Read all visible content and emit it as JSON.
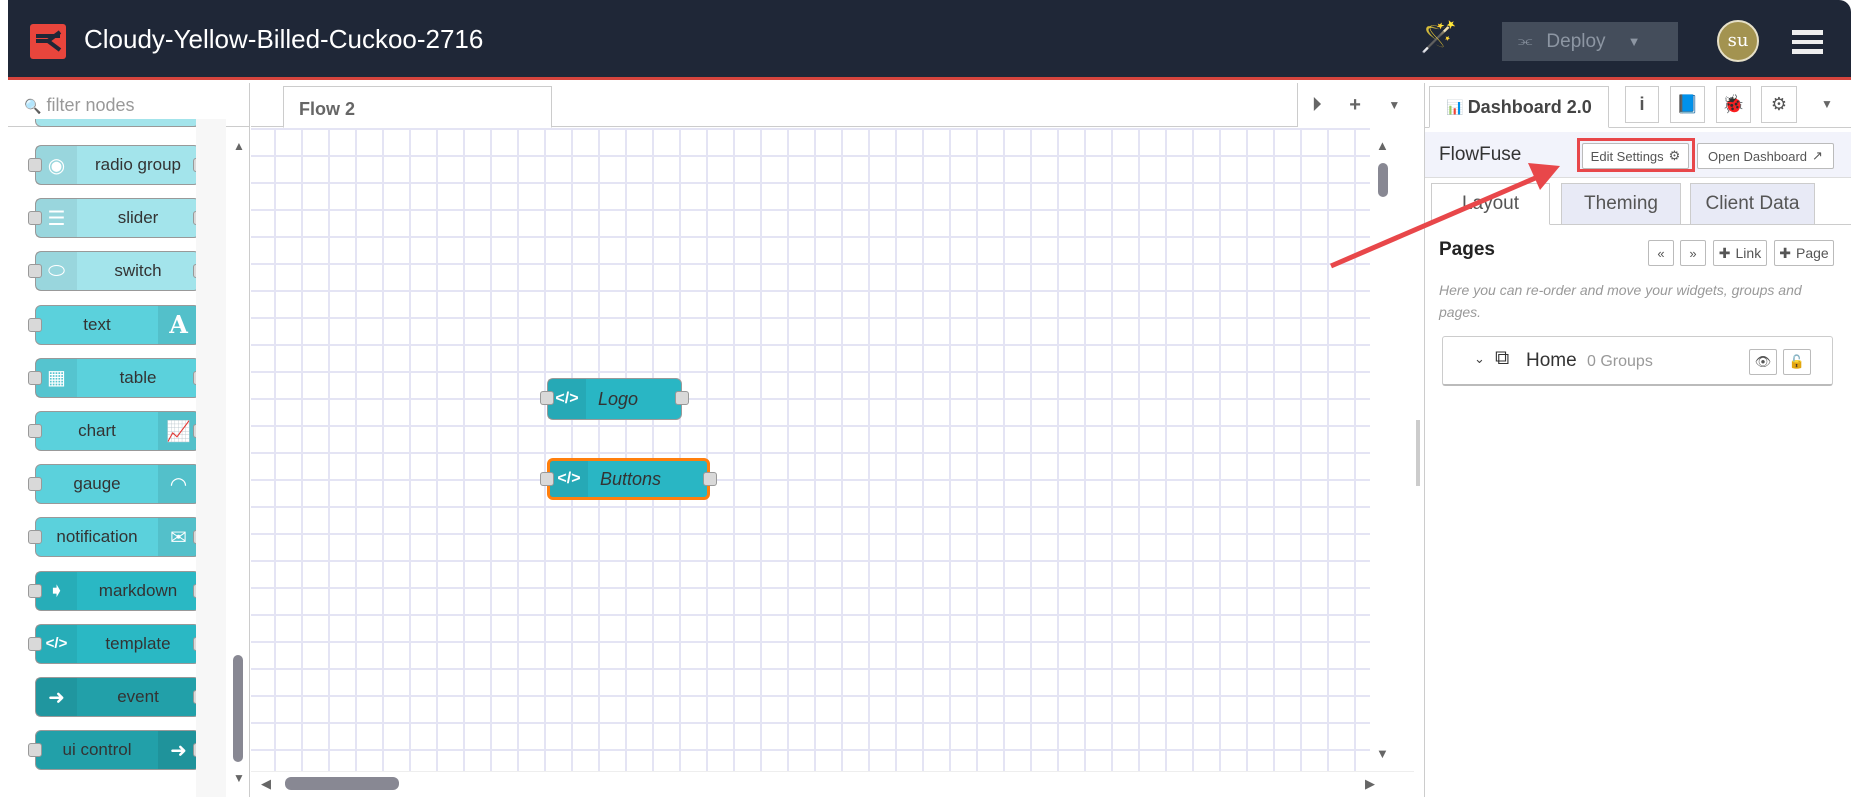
{
  "header": {
    "title": "Cloudy-Yellow-Billed-Cuckoo-2716",
    "deploy_label": "Deploy",
    "avatar_initials": "su",
    "brand_color": "#e8453c"
  },
  "palette": {
    "filter_placeholder": "filter nodes",
    "nodes": [
      {
        "label": "radio group",
        "icon": "radio-icon",
        "icon_glyph": "◉",
        "icon_side": "left",
        "color": "#a3e4eb",
        "ports": "both"
      },
      {
        "label": "slider",
        "icon": "sliders-icon",
        "icon_glyph": "☰",
        "icon_side": "left",
        "color": "#a3e4eb",
        "ports": "both"
      },
      {
        "label": "switch",
        "icon": "toggle-icon",
        "icon_glyph": "⬭",
        "icon_side": "left",
        "color": "#a3e4eb",
        "ports": "both"
      },
      {
        "label": "text",
        "icon": "font-icon",
        "icon_glyph": "A",
        "icon_side": "right",
        "color": "#5bd1dc",
        "ports": "left"
      },
      {
        "label": "table",
        "icon": "table-icon",
        "icon_glyph": "▦",
        "icon_side": "left",
        "color": "#5bd1dc",
        "ports": "both"
      },
      {
        "label": "chart",
        "icon": "line-chart-icon",
        "icon_glyph": "📈",
        "icon_side": "right",
        "color": "#5bd1dc",
        "ports": "both"
      },
      {
        "label": "gauge",
        "icon": "gauge-icon",
        "icon_glyph": "◠",
        "icon_side": "right",
        "color": "#5bd1dc",
        "ports": "left"
      },
      {
        "label": "notification",
        "icon": "envelope-icon",
        "icon_glyph": "✉",
        "icon_side": "right",
        "color": "#5bd1dc",
        "ports": "both"
      },
      {
        "label": "markdown",
        "icon": "markdown-arrow-icon",
        "icon_glyph": "➧",
        "icon_side": "left",
        "color": "#2ab8c4",
        "ports": "both"
      },
      {
        "label": "template",
        "icon": "code-icon",
        "icon_glyph": "</>",
        "icon_side": "left",
        "color": "#2ab8c4",
        "ports": "both"
      },
      {
        "label": "event",
        "icon": "arrow-circle-icon",
        "icon_glyph": "➜",
        "icon_side": "left",
        "color": "#22a0a9",
        "ports": "right"
      },
      {
        "label": "ui control",
        "icon": "arrow-circle-icon",
        "icon_glyph": "➜",
        "icon_side": "right",
        "color": "#22a0a9",
        "ports": "both"
      }
    ]
  },
  "workspace": {
    "tab_label": "Flow 2",
    "nodes": [
      {
        "label": "Logo",
        "selected": false
      },
      {
        "label": "Buttons",
        "selected": true
      }
    ],
    "selection_color": "#ff7f0e"
  },
  "sidebar": {
    "tab_label": "Dashboard 2.0",
    "dashboard_name": "FlowFuse",
    "edit_settings": "Edit Settings",
    "open_dashboard": "Open Dashboard",
    "subtabs": [
      "Layout",
      "Theming",
      "Client Data"
    ],
    "pages_title": "Pages",
    "link_button": "Link",
    "page_button": "Page",
    "help_text": "Here you can re-order and move your widgets, groups and pages.",
    "pages": [
      {
        "name": "Home",
        "groups": "0 Groups"
      }
    ]
  },
  "annotation": {
    "color": "#e8474a"
  }
}
